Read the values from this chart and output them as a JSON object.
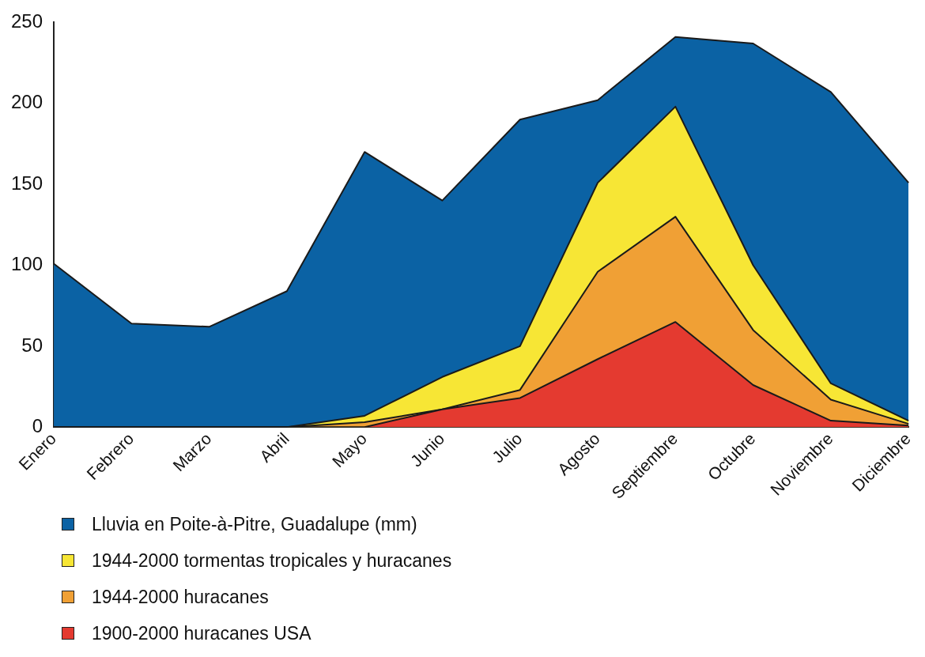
{
  "chart_data": {
    "type": "area",
    "categories": [
      "Enero",
      "Febrero",
      "Marzo",
      "Abril",
      "Mayo",
      "Junio",
      "Julio",
      "Agosto",
      "Septiembre",
      "Octubre",
      "Noviembre",
      "Diciembre"
    ],
    "series": [
      {
        "name": "Lluvia en Poite-à-Pitre, Guadalupe (mm)",
        "color": "#0b62a4",
        "values": [
          101,
          64,
          62,
          84,
          170,
          140,
          190,
          202,
          241,
          237,
          207,
          151
        ]
      },
      {
        "name": "1944-2000 tormentas tropicales y huracanes",
        "color": "#f7e635",
        "values": [
          0,
          0,
          0,
          0,
          7,
          31,
          50,
          151,
          198,
          100,
          27,
          4
        ]
      },
      {
        "name": "1944-2000 huracanes",
        "color": "#f0a035",
        "values": [
          0,
          0,
          0,
          0,
          3,
          11,
          23,
          96,
          130,
          60,
          17,
          2
        ]
      },
      {
        "name": "1900-2000 huracanes USA",
        "color": "#e43a30",
        "values": [
          0,
          0,
          0,
          0,
          0,
          11,
          18,
          42,
          65,
          26,
          4,
          1
        ]
      }
    ],
    "ylim": [
      0,
      250
    ],
    "yticks": [
      0,
      50,
      100,
      150,
      200,
      250
    ],
    "grid": false,
    "legend": "bottom left"
  }
}
